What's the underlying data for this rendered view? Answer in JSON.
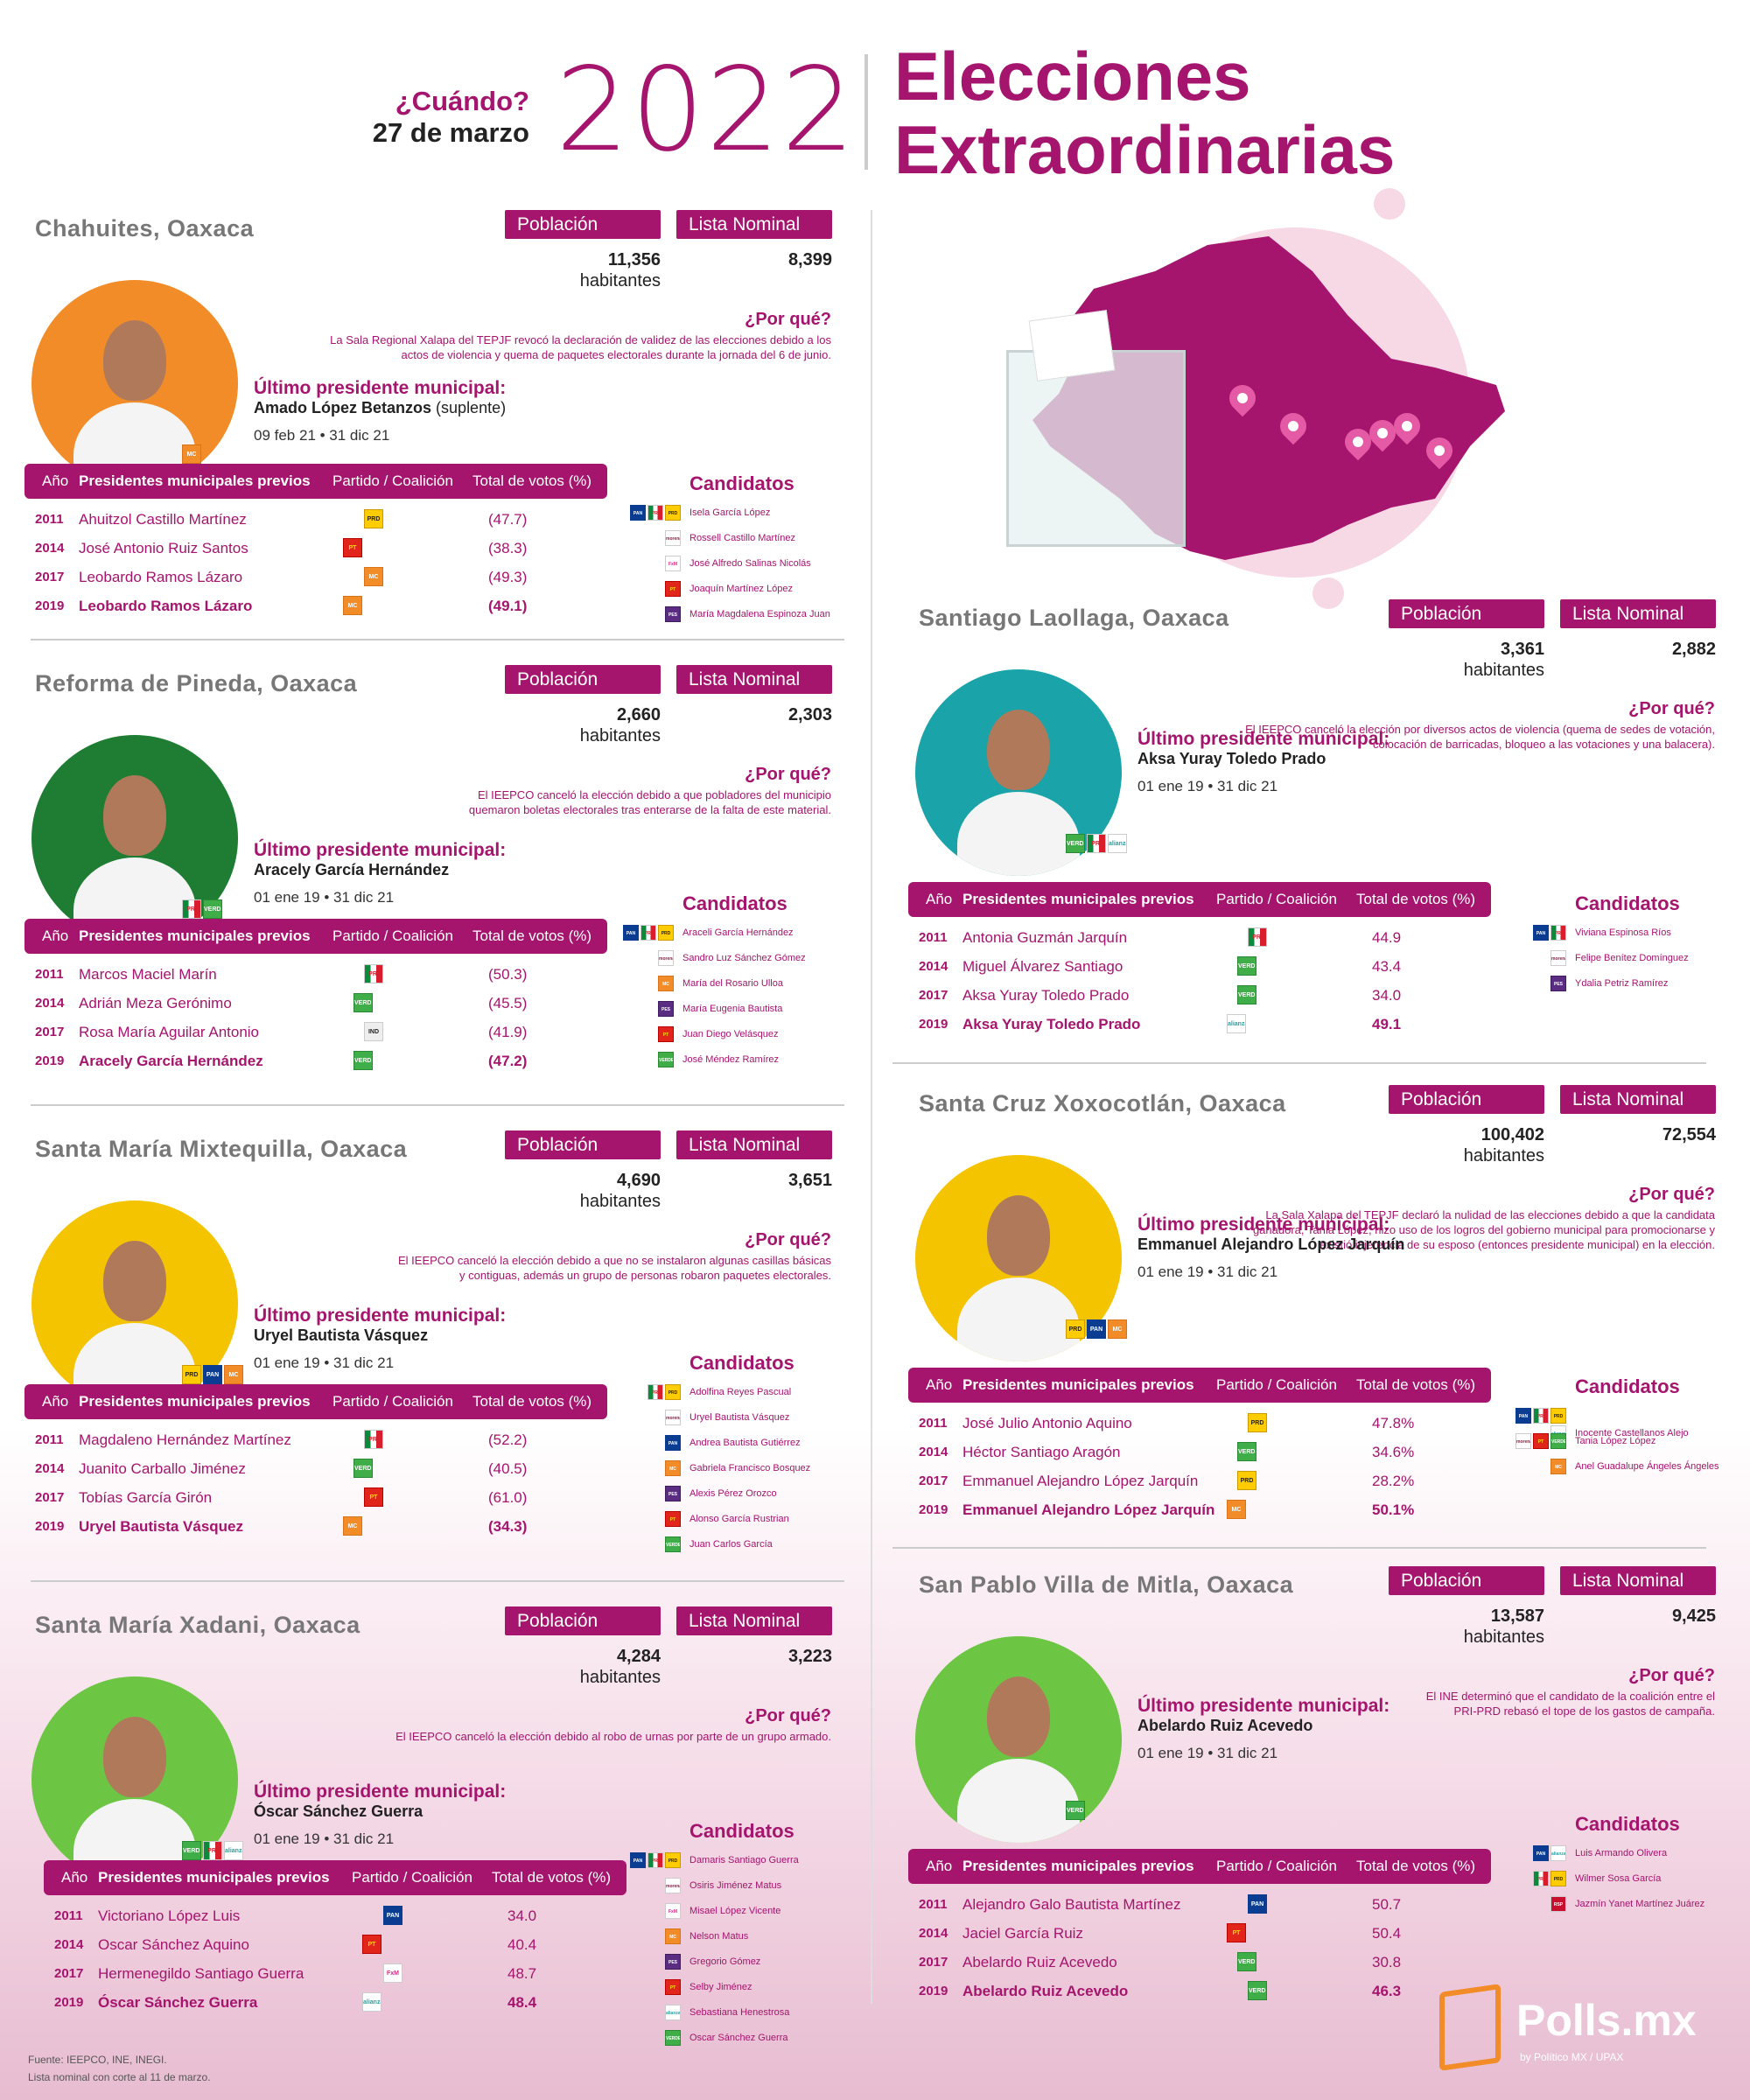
{
  "header": {
    "when_label": "¿Cuándo?",
    "date": "27 de marzo",
    "year": "2022",
    "title_line1": "Elecciones",
    "title_line2": "Extraordinarias"
  },
  "labels": {
    "poblacion": "Población",
    "lista_nominal": "Lista Nominal",
    "habitantes": "habitantes",
    "por_que": "¿Por qué?",
    "ultimo": "Último presidente municipal:",
    "candidatos": "Candidatos",
    "th_anio": "Año",
    "th_presidentes": "Presidentes municipales previos",
    "th_partido": "Partido / Coalición",
    "th_votos": "Total de votos (%)"
  },
  "municipios": [
    {
      "name": "Chahuites, Oaxaca",
      "poblacion": "11,356",
      "lista": "8,399",
      "why": [
        "La Sala Regional Xalapa del TEPJF revocó la declaración de validez de las elecciones debido a los",
        "actos de violencia y quema de paquetes electorales durante la jornada del 6 de junio."
      ],
      "last_name": "Amado López Betanzos",
      "last_note": "(suplente)",
      "last_dates": "09 feb 21 • 31 dic 21",
      "portrait_color": "#f28c28",
      "portrait_logos": [
        "mc"
      ],
      "rows": [
        {
          "year": "2011",
          "name": "Ahuitzol Castillo Martínez",
          "parties": [
            "prd"
          ],
          "votes": "(47.7)"
        },
        {
          "year": "2014",
          "name": "José Antonio Ruiz Santos",
          "parties": [
            "pan",
            "prd",
            "pt"
          ],
          "votes": "(38.3)"
        },
        {
          "year": "2017",
          "name": "Leobardo Ramos Lázaro",
          "parties": [
            "mc"
          ],
          "votes": "(49.3)"
        },
        {
          "year": "2019",
          "name": "Leobardo Ramos Lázaro",
          "parties": [
            "pan",
            "prd",
            "mc"
          ],
          "votes": "(49.1)"
        }
      ],
      "candidatos": [
        {
          "parties": [
            "pan",
            "pri",
            "prd"
          ],
          "name": "Isela García López"
        },
        {
          "parties": [
            "morena"
          ],
          "name": "Rossell Castillo Martínez"
        },
        {
          "parties": [
            "fxm"
          ],
          "name": "José Alfredo Salinas Nicolás"
        },
        {
          "parties": [
            "pt"
          ],
          "name": "Joaquín Martínez López"
        },
        {
          "parties": [
            "pes"
          ],
          "name": "María Magdalena Espinoza Juan"
        }
      ]
    },
    {
      "name": "Reforma de Pineda, Oaxaca",
      "poblacion": "2,660",
      "lista": "2,303",
      "why": [
        "El IEEPCO canceló la elección debido a que pobladores del municipio",
        "quemaron boletas electorales tras enterarse de la falta de este material."
      ],
      "last_name": "Aracely García Hernández",
      "last_note": "",
      "last_dates": "01 ene 19 • 31 dic 21",
      "portrait_color": "#1e7d32",
      "portrait_logos": [
        "pri",
        "verde"
      ],
      "rows": [
        {
          "year": "2011",
          "name": "Marcos Maciel Marín",
          "parties": [
            "pri"
          ],
          "votes": "(50.3)"
        },
        {
          "year": "2014",
          "name": "Adrián Meza Gerónimo",
          "parties": [
            "pri",
            "verde"
          ],
          "votes": "(45.5)"
        },
        {
          "year": "2017",
          "name": "Rosa María Aguilar Antonio",
          "parties": [
            "ind"
          ],
          "votes": "(41.9)"
        },
        {
          "year": "2019",
          "name": "Aracely García Hernández",
          "parties": [
            "pri",
            "verde"
          ],
          "votes": "(47.2)"
        }
      ],
      "candidatos": [
        {
          "parties": [
            "pan",
            "pri",
            "prd"
          ],
          "name": "Araceli García Hernández"
        },
        {
          "parties": [
            "morena"
          ],
          "name": "Sandro Luz Sánchez Gómez"
        },
        {
          "parties": [
            "mc"
          ],
          "name": "María del Rosario Ulloa"
        },
        {
          "parties": [
            "pes"
          ],
          "name": "María Eugenia Bautista"
        },
        {
          "parties": [
            "pt"
          ],
          "name": "Juan Diego Velásquez"
        },
        {
          "parties": [
            "verde"
          ],
          "name": "José Méndez Ramírez"
        }
      ]
    },
    {
      "name": "Santa María Mixtequilla, Oaxaca",
      "poblacion": "4,690",
      "lista": "3,651",
      "why": [
        "El IEEPCO canceló la elección debido a que no se instalaron algunas casillas básicas",
        "y contiguas, además un grupo de personas robaron paquetes electorales."
      ],
      "last_name": "Uryel Bautista Vásquez",
      "last_note": "",
      "last_dates": "01 ene 19 • 31 dic 21",
      "portrait_color": "#f5c400",
      "portrait_logos": [
        "prd",
        "pan",
        "mc"
      ],
      "rows": [
        {
          "year": "2011",
          "name": "Magdaleno Hernández Martínez",
          "parties": [
            "pri"
          ],
          "votes": "(52.2)"
        },
        {
          "year": "2014",
          "name": "Juanito Carballo Jiménez",
          "parties": [
            "pri",
            "verde"
          ],
          "votes": "(40.5)"
        },
        {
          "year": "2017",
          "name": "Tobías García Girón",
          "parties": [
            "pt"
          ],
          "votes": "(61.0)"
        },
        {
          "year": "2019",
          "name": "Uryel Bautista Vásquez",
          "parties": [
            "pan",
            "prd",
            "mc"
          ],
          "votes": "(34.3)"
        }
      ],
      "candidatos": [
        {
          "parties": [
            "pri",
            "prd"
          ],
          "name": "Adolfina Reyes Pascual"
        },
        {
          "parties": [
            "morena"
          ],
          "name": "Uryel Bautista Vásquez"
        },
        {
          "parties": [
            "pan"
          ],
          "name": "Andrea Bautista Gutiérrez"
        },
        {
          "parties": [
            "mc"
          ],
          "name": "Gabriela Francisco Bosquez"
        },
        {
          "parties": [
            "pes"
          ],
          "name": "Alexis Pérez Orozco"
        },
        {
          "parties": [
            "pt"
          ],
          "name": "Alonso García Rustrian"
        },
        {
          "parties": [
            "verde"
          ],
          "name": "Juan Carlos García"
        }
      ]
    },
    {
      "name": "Santa María Xadani, Oaxaca",
      "poblacion": "4,284",
      "lista": "3,223",
      "why": [
        "El IEEPCO canceló la elección debido al robo de urnas por parte de un grupo armado."
      ],
      "last_name": "Óscar Sánchez Guerra",
      "last_note": "",
      "last_dates": "01 ene 19 • 31 dic 21",
      "portrait_color": "#6cc644",
      "portrait_logos": [
        "verde",
        "pri",
        "ali"
      ],
      "rows": [
        {
          "year": "2011",
          "name": "Victoriano López Luis",
          "parties": [
            "pan"
          ],
          "votes": "34.0"
        },
        {
          "year": "2014",
          "name": "Oscar Sánchez Aquino",
          "parties": [
            "pan",
            "prd",
            "pt"
          ],
          "votes": "40.4"
        },
        {
          "year": "2017",
          "name": "Hermenegildo Santiago Guerra",
          "parties": [
            "fxm"
          ],
          "votes": "48.7"
        },
        {
          "year": "2019",
          "name": "Óscar Sánchez Guerra",
          "parties": [
            "pri",
            "verde",
            "ali"
          ],
          "votes": "48.4"
        }
      ],
      "candidatos": [
        {
          "parties": [
            "pan",
            "pri",
            "prd"
          ],
          "name": "Damaris Santiago Guerra"
        },
        {
          "parties": [
            "morena"
          ],
          "name": "Osiris Jiménez Matus"
        },
        {
          "parties": [
            "fxm"
          ],
          "name": "Misael López Vicente"
        },
        {
          "parties": [
            "mc"
          ],
          "name": "Nelson Matus"
        },
        {
          "parties": [
            "pes"
          ],
          "name": "Gregorio Gómez"
        },
        {
          "parties": [
            "pt"
          ],
          "name": "Selby Jiménez"
        },
        {
          "parties": [
            "ali"
          ],
          "name": "Sebastiana Henestrosa"
        },
        {
          "parties": [
            "verde"
          ],
          "name": "Oscar Sánchez Guerra"
        }
      ]
    },
    {
      "name": "Santiago Laollaga, Oaxaca",
      "poblacion": "3,361",
      "lista": "2,882",
      "why": [
        "El IEEPCO canceló la elección por diversos actos de violencia (quema de sedes de votación,",
        "colocación de barricadas, bloqueo a las votaciones y una balacera)."
      ],
      "last_name": "Aksa Yuray Toledo Prado",
      "last_note": "",
      "last_dates": "01 ene 19 • 31 dic 21",
      "portrait_color": "#1aa3a8",
      "portrait_logos": [
        "verde",
        "pri",
        "ali"
      ],
      "rows": [
        {
          "year": "2011",
          "name": "Antonia Guzmán Jarquín",
          "parties": [
            "pri"
          ],
          "votes": "44.9"
        },
        {
          "year": "2014",
          "name": "Miguel Álvarez Santiago",
          "parties": [
            "pri",
            "verde"
          ],
          "votes": "43.4"
        },
        {
          "year": "2017",
          "name": "Aksa Yuray Toledo Prado",
          "parties": [
            "pri",
            "verde"
          ],
          "votes": "34.0"
        },
        {
          "year": "2019",
          "name": "Aksa Yuray Toledo Prado",
          "parties": [
            "pri",
            "verde",
            "ali"
          ],
          "votes": "49.1"
        }
      ],
      "candidatos": [
        {
          "parties": [
            "pan",
            "pri"
          ],
          "name": "Viviana Espinosa Ríos"
        },
        {
          "parties": [
            "morena"
          ],
          "name": "Felipe Benítez Domínguez"
        },
        {
          "parties": [
            "pes"
          ],
          "name": "Ydalia Petriz Ramírez"
        }
      ]
    },
    {
      "name": "Santa Cruz Xoxocotlán, Oaxaca",
      "poblacion": "100,402",
      "lista": "72,554",
      "why": [
        "La Sala Xalapa del TEPJF declaró la nulidad de las elecciones debido a que la candidata",
        "ganadora, Tania López, hizo uso de los logros del gobierno municipal para promocionarse y",
        "existió injerencia de su esposo (entonces presidente municipal) en la elección."
      ],
      "last_name": "Emmanuel Alejandro López Jarquín",
      "last_note": "",
      "last_dates": "01 ene 19 • 31 dic 21",
      "portrait_color": "#f5c400",
      "portrait_logos": [
        "prd",
        "pan",
        "mc"
      ],
      "rows": [
        {
          "year": "2011",
          "name": "José Julio Antonio Aquino",
          "parties": [
            "prd"
          ],
          "votes": "47.8%"
        },
        {
          "year": "2014",
          "name": "Héctor Santiago Aragón",
          "parties": [
            "pri",
            "verde"
          ],
          "votes": "34.6%"
        },
        {
          "year": "2017",
          "name": "Emmanuel Alejandro López Jarquín",
          "parties": [
            "pan",
            "prd"
          ],
          "votes": "28.2%"
        },
        {
          "year": "2019",
          "name": "Emmanuel Alejandro López Jarquín",
          "parties": [
            "pan",
            "prd",
            "mc"
          ],
          "votes": "50.1%"
        }
      ],
      "candidatos": [
        {
          "parties": [
            "pan",
            "pri",
            "prd",
            "ali"
          ],
          "name": "Inocente Castellanos Alejo"
        },
        {
          "parties": [
            "morena",
            "pt",
            "verde"
          ],
          "name": "Tania López López"
        },
        {
          "parties": [
            "mc"
          ],
          "name": "Anel Guadalupe Ángeles Ángeles"
        }
      ]
    },
    {
      "name": "San Pablo Villa de Mitla, Oaxaca",
      "poblacion": "13,587",
      "lista": "9,425",
      "why": [
        "El INE determinó que el candidato de la coalición entre el",
        "PRI-PRD rebasó el tope de los gastos de campaña."
      ],
      "last_name": "Abelardo Ruiz Acevedo",
      "last_note": "",
      "last_dates": "01 ene 19 • 31 dic 21",
      "portrait_color": "#6cc644",
      "portrait_logos": [
        "verde"
      ],
      "rows": [
        {
          "year": "2011",
          "name": "Alejandro Galo Bautista Martínez",
          "parties": [
            "pan"
          ],
          "votes": "50.7"
        },
        {
          "year": "2014",
          "name": "Jaciel García Ruiz",
          "parties": [
            "pan",
            "prd",
            "pt"
          ],
          "votes": "50.4"
        },
        {
          "year": "2017",
          "name": "Abelardo Ruiz Acevedo",
          "parties": [
            "pri",
            "verde"
          ],
          "votes": "30.8"
        },
        {
          "year": "2019",
          "name": "Abelardo Ruiz Acevedo",
          "parties": [
            "verde"
          ],
          "votes": "46.3"
        }
      ],
      "candidatos": [
        {
          "parties": [
            "pan",
            "ali"
          ],
          "name": "Luis Armando Olivera"
        },
        {
          "parties": [
            "pri",
            "prd"
          ],
          "name": "Wilmer Sosa García"
        },
        {
          "parties": [
            "red"
          ],
          "name": "Jazmín Yanet Martínez Juárez"
        }
      ]
    }
  ],
  "party_text": {
    "pan": "PAN",
    "prd": "PRD",
    "pri": "PRI",
    "pt": "PT",
    "verde": "VERDE",
    "mc": "MC",
    "pes": "PES",
    "ind": "IND",
    "ali": "alianza",
    "fxm": "FxM",
    "morena": "morena",
    "red": "RSP"
  },
  "footer": {
    "line1": "Fuente: IEEPCO, INE, INEGI.",
    "line2": "Lista nominal con corte al 11 de marzo."
  },
  "brand": {
    "name": "Polls.mx",
    "tagline": "by Político MX / UPAX"
  }
}
